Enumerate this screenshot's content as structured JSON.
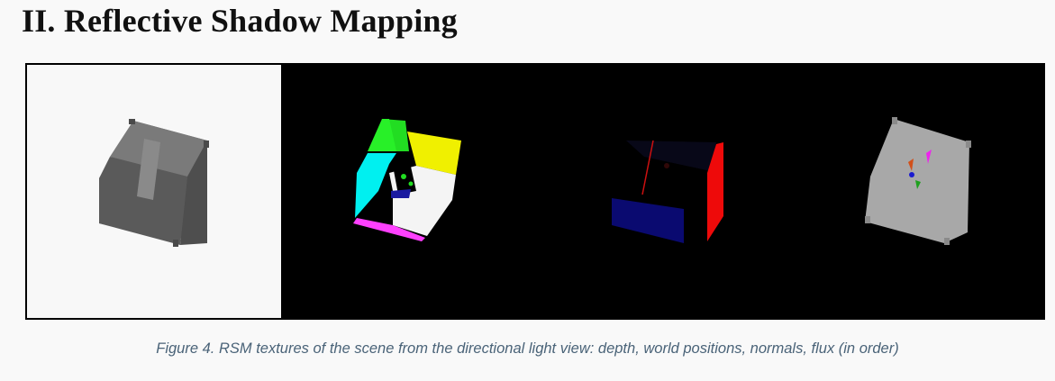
{
  "section": {
    "heading": "II. Reflective Shadow Mapping"
  },
  "figure": {
    "panels": [
      "depth",
      "world-positions",
      "normals",
      "flux"
    ],
    "caption": "Figure 4. RSM textures of the scene from the directional light view: depth, world positions, normals, flux (in order)"
  }
}
